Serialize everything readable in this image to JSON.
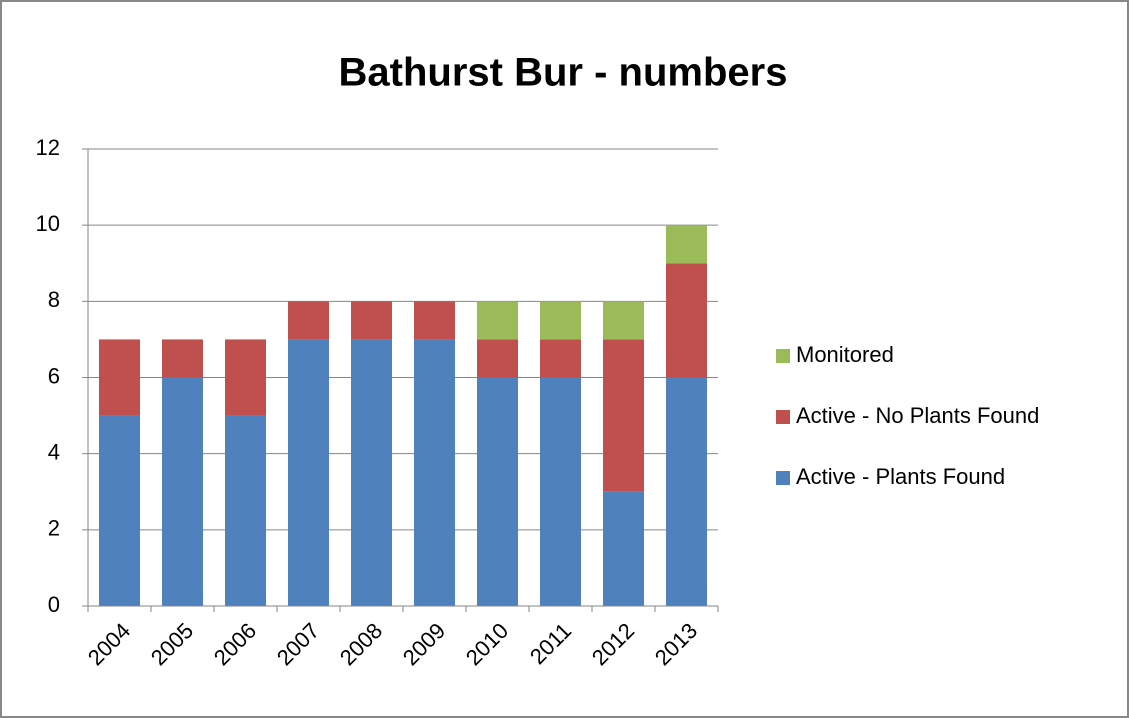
{
  "chart_data": {
    "type": "stacked_bar",
    "title": "Bathurst Bur - numbers",
    "categories": [
      "2004",
      "2005",
      "2006",
      "2007",
      "2008",
      "2009",
      "2010",
      "2011",
      "2012",
      "2013"
    ],
    "series": [
      {
        "name": "Active - Plants Found",
        "color": "#4f81bd",
        "values": [
          5,
          6,
          5,
          7,
          7,
          7,
          6,
          6,
          3,
          6
        ]
      },
      {
        "name": "Active - No Plants Found",
        "color": "#c0504d",
        "values": [
          2,
          1,
          2,
          1,
          1,
          1,
          1,
          1,
          4,
          3
        ]
      },
      {
        "name": "Monitored",
        "color": "#9bbb59",
        "values": [
          0,
          0,
          0,
          0,
          0,
          0,
          1,
          1,
          1,
          1
        ]
      }
    ],
    "ylim": [
      0,
      12
    ],
    "yticks": [
      0,
      2,
      4,
      6,
      8,
      10,
      12
    ],
    "grid": true,
    "legend": "right"
  }
}
